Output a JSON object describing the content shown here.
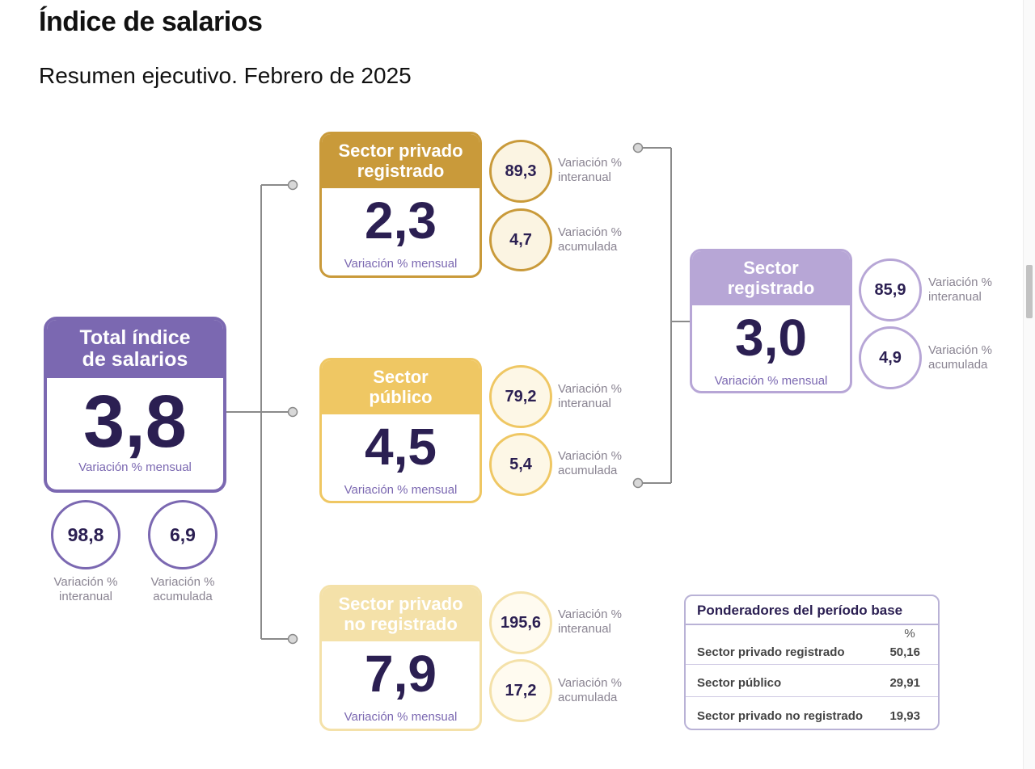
{
  "page": {
    "title": "Índice de salarios",
    "subtitle": "Resumen ejecutivo. Febrero de 2025"
  },
  "colors": {
    "purple": "#7b68b1",
    "light_purple": "#b7a6d6",
    "dark_gold": "#c99a3a",
    "gold": "#efc763",
    "pale_gold": "#f4e1a9",
    "value_text": "#2b1f52",
    "connector": "#8a8a8a"
  },
  "total": {
    "header": "Total índice de salarios",
    "value": "3,8",
    "caption": "Variación % mensual",
    "interanual": {
      "value": "98,8",
      "label": "Variación % interanual"
    },
    "acumulada": {
      "value": "6,9",
      "label": "Variación % acumulada"
    }
  },
  "privado_registrado": {
    "header": "Sector privado registrado",
    "value": "2,3",
    "caption": "Variación % mensual",
    "interanual": {
      "value": "89,3",
      "label": "Variación % interanual"
    },
    "acumulada": {
      "value": "4,7",
      "label": "Variación % acumulada"
    }
  },
  "publico": {
    "header": "Sector público",
    "value": "4,5",
    "caption": "Variación % mensual",
    "interanual": {
      "value": "79,2",
      "label": "Variación % interanual"
    },
    "acumulada": {
      "value": "5,4",
      "label": "Variación % acumulada"
    }
  },
  "privado_no_registrado": {
    "header": "Sector privado no registrado",
    "value": "7,9",
    "caption": "Variación % mensual",
    "interanual": {
      "value": "195,6",
      "label": "Variación % interanual"
    },
    "acumulada": {
      "value": "17,2",
      "label": "Variación % acumulada"
    }
  },
  "registrado": {
    "header": "Sector registrado",
    "value": "3,0",
    "caption": "Variación % mensual",
    "interanual": {
      "value": "85,9",
      "label": "Variación % interanual"
    },
    "acumulada": {
      "value": "4,9",
      "label": "Variación % acumulada"
    }
  },
  "ponderadores": {
    "title": "Ponderadores del período base",
    "unit": "%",
    "rows": [
      {
        "label": "Sector privado registrado",
        "value": "50,16"
      },
      {
        "label": "Sector público",
        "value": "29,91"
      },
      {
        "label": "Sector privado no registrado",
        "value": "19,93"
      }
    ]
  }
}
